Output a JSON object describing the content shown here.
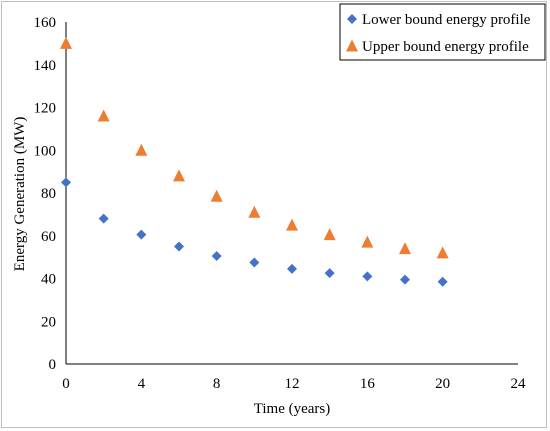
{
  "chart_data": {
    "type": "scatter",
    "title": "",
    "xlabel": "Time (years)",
    "ylabel": "Energy Generation (MW)",
    "xlim": [
      0,
      24
    ],
    "ylim": [
      0,
      160
    ],
    "xticks": [
      0,
      4,
      8,
      12,
      16,
      20,
      24
    ],
    "yticks": [
      0,
      20,
      40,
      60,
      80,
      100,
      120,
      140,
      160
    ],
    "grid": false,
    "legend_position": "top-right",
    "series": [
      {
        "name": "Lower bound energy profile",
        "marker": "diamond",
        "color": "#4472c4",
        "x": [
          0,
          2,
          4,
          6,
          8,
          10,
          12,
          14,
          16,
          18,
          20
        ],
        "y": [
          85,
          68,
          60.5,
          55,
          50.5,
          47.5,
          44.5,
          42.5,
          41,
          39.5,
          38.5
        ]
      },
      {
        "name": "Upper bound energy profile",
        "marker": "triangle",
        "color": "#ed7d31",
        "x": [
          0,
          2,
          4,
          6,
          8,
          10,
          12,
          14,
          16,
          18,
          20
        ],
        "y": [
          150,
          116,
          100,
          88,
          78.5,
          71,
          65,
          60.5,
          57,
          54,
          52
        ]
      }
    ]
  }
}
